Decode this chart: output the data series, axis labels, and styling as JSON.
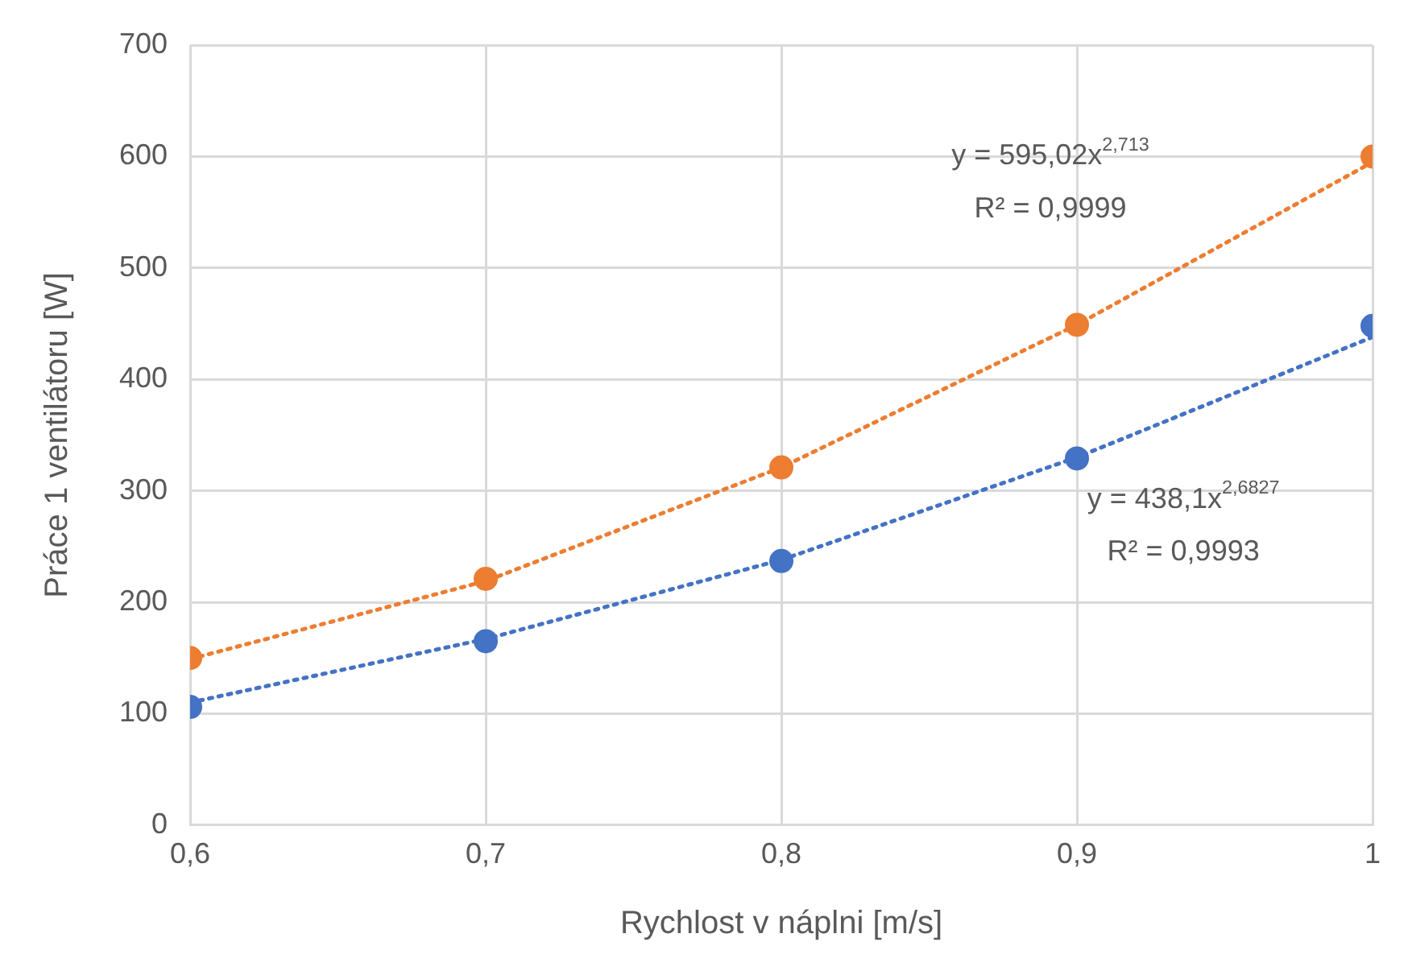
{
  "chart_data": {
    "type": "scatter",
    "xlabel": "Rychlost v náplni [m/s]",
    "ylabel": "Práce 1 ventilátoru [W]",
    "xlim": [
      0.6,
      1
    ],
    "xticks": [
      {
        "value": 0.6,
        "label": "0,6"
      },
      {
        "value": 0.7,
        "label": "0,7"
      },
      {
        "value": 0.8,
        "label": "0,8"
      },
      {
        "value": 0.9,
        "label": "0,9"
      },
      {
        "value": 1,
        "label": "1"
      }
    ],
    "ylim": [
      0,
      700
    ],
    "yticks": [
      0,
      100,
      200,
      300,
      400,
      500,
      600,
      700
    ],
    "grid": true,
    "legend": false,
    "marker": "circle",
    "series": [
      {
        "type": "line",
        "color": "#ed7d31",
        "x": [
          0.6,
          0.7,
          0.8,
          0.9,
          1
        ],
        "values": [
          149,
          219,
          321,
          449,
          595
        ],
        "marker": "none",
        "line_style": "dotted"
      },
      {
        "type": "line",
        "color": "#4472c4",
        "x": [
          0.6,
          0.7,
          0.8,
          0.9,
          1
        ],
        "values": [
          110,
          167,
          238,
          330,
          438
        ],
        "marker": "none",
        "line_style": "dotted"
      },
      {
        "color": "#ed7d31",
        "x": [
          0.6,
          0.7,
          0.8,
          0.9,
          1
        ],
        "values": [
          150,
          221,
          321,
          449,
          600
        ]
      },
      {
        "color": "#4472c4",
        "x": [
          0.6,
          0.7,
          0.8,
          0.9,
          1
        ],
        "values": [
          106,
          165,
          237,
          329,
          448
        ]
      }
    ],
    "annotations": [
      "y = 595,02x$^{2,713}$",
      "R² = 0,9999",
      "y = 438,1x$^{2,6827}$",
      "R² = 0,9993"
    ]
  }
}
